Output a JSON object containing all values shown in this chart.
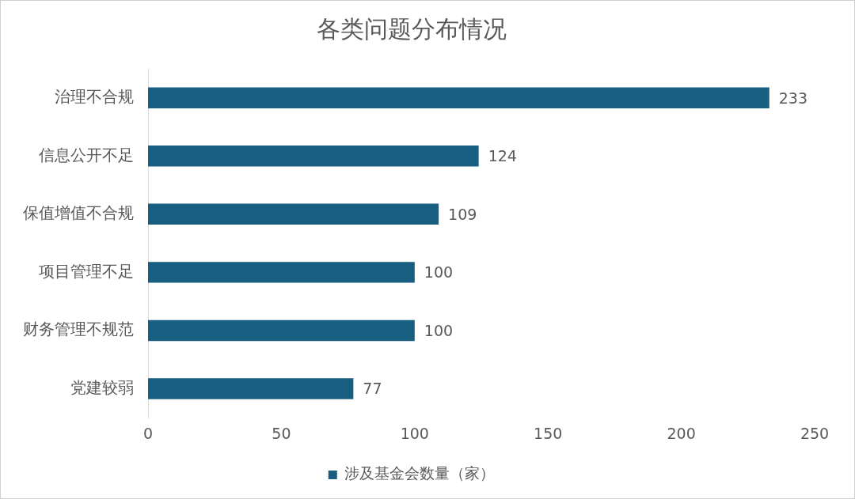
{
  "chart_data": {
    "type": "bar",
    "orientation": "horizontal",
    "title": "各类问题分布情况",
    "categories": [
      "治理不合规",
      "信息公开不足",
      "保值增值不合规",
      "项目管理不足",
      "财务管理不规范",
      "党建较弱"
    ],
    "series": [
      {
        "name": "涉及基金会数量（家）",
        "color": "#175e80",
        "values": [
          233,
          124,
          109,
          100,
          100,
          77
        ]
      }
    ],
    "xlim": [
      0,
      250
    ],
    "xticks": [
      0,
      50,
      100,
      150,
      200,
      250
    ],
    "data_labels": true,
    "legend": "bottom"
  }
}
